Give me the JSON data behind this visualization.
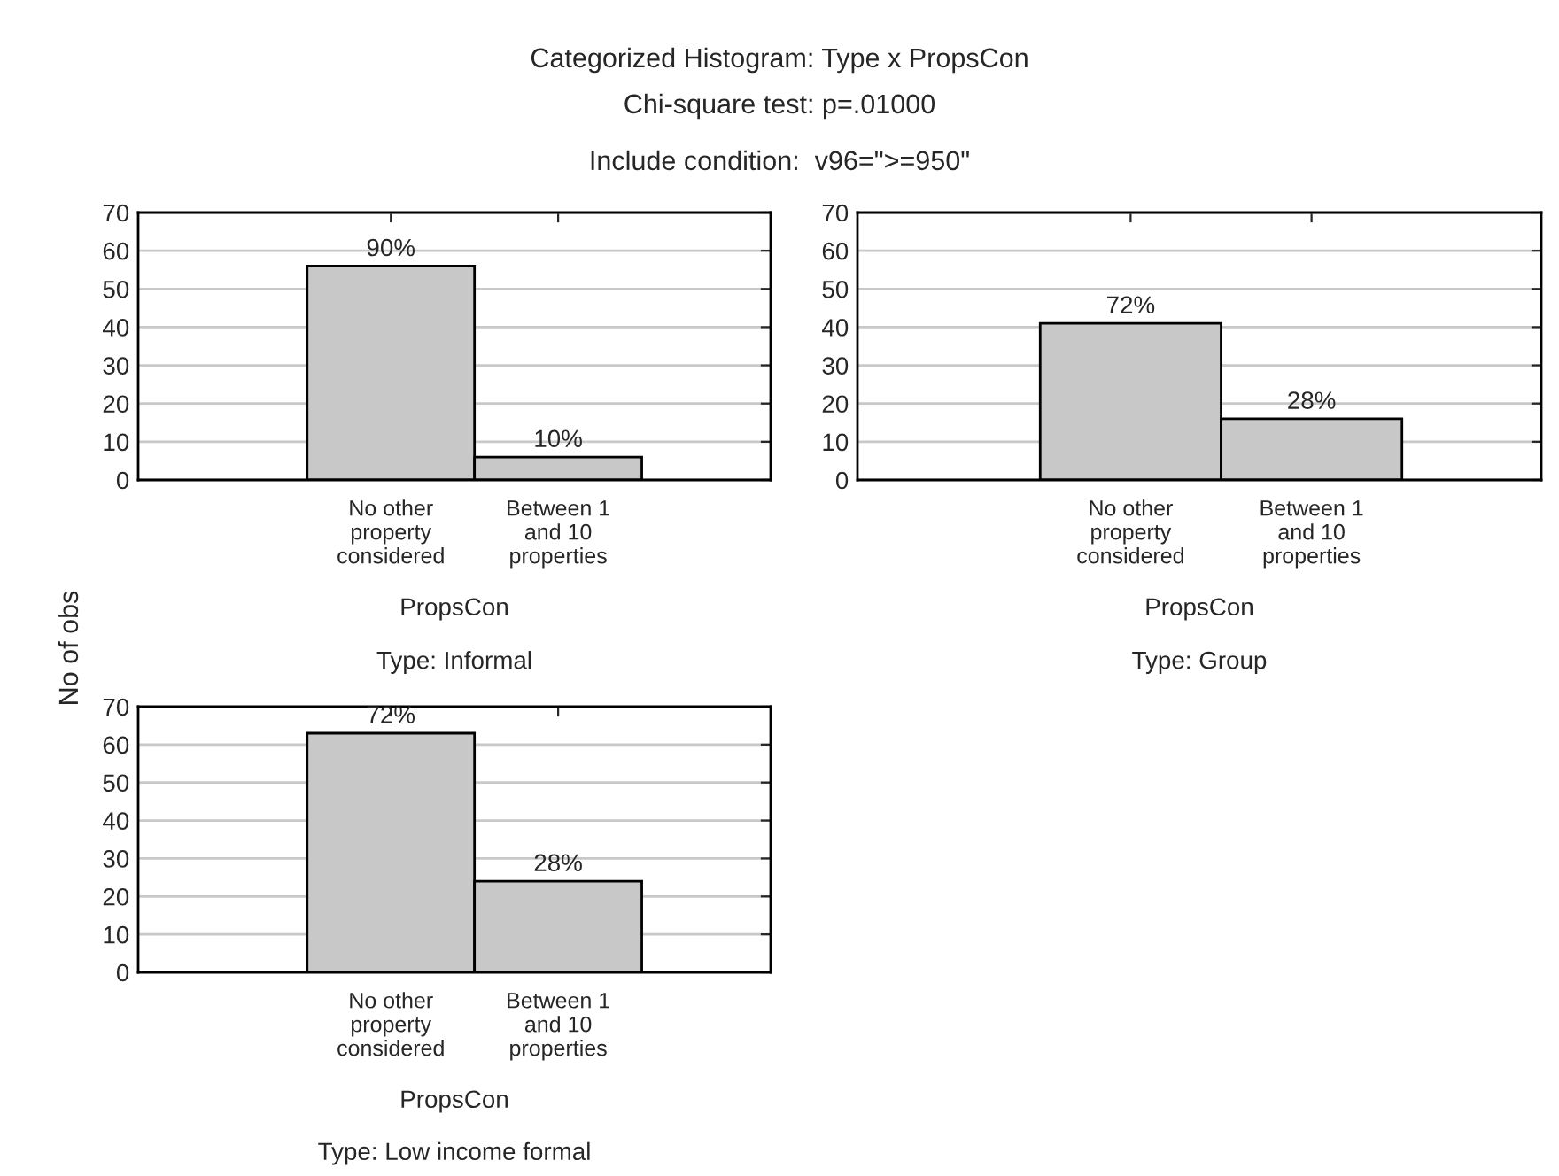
{
  "chart_data": [
    {
      "type": "bar",
      "title": "Categorized Histogram: Type x PropsCon",
      "subtitle": "Chi-square test: p=.01000",
      "ylabel": "No of obs",
      "xlabel": "PropsCon",
      "annotations": [
        "Include condition:  v96=\">=950\"",
        "Type: Informal",
        {
          "text": "90%",
          "x": "No other property considered",
          "y": 56
        },
        {
          "text": "10%",
          "x": "Between 1 and 10 properties",
          "y": 6
        }
      ],
      "categories": [
        "No other property considered",
        "Between 1 and 10 properties"
      ],
      "values": [
        56,
        6
      ],
      "color": "#c8c8c8",
      "ylim": [
        0,
        70
      ],
      "yticks": [
        0,
        10,
        20,
        30,
        40,
        50,
        60,
        70
      ],
      "grid": "y"
    },
    {
      "type": "bar",
      "xlabel": "PropsCon",
      "annotations": [
        "Type: Low income formal",
        {
          "text": "72%",
          "x": "No other property considered",
          "y": 63
        },
        {
          "text": "28%",
          "x": "Between 1 and 10 properties",
          "y": 24
        }
      ],
      "categories": [
        "No other property considered",
        "Between 1 and 10 properties"
      ],
      "values": [
        63,
        24
      ],
      "color": "#c8c8c8",
      "ylim": [
        0,
        70
      ],
      "yticks": [
        0,
        10,
        20,
        30,
        40,
        50,
        60,
        70
      ],
      "grid": "y"
    },
    {
      "type": "bar",
      "xlabel": "PropsCon",
      "annotations": [
        "Type: Group",
        {
          "text": "72%",
          "x": "No other property considered",
          "y": 41
        },
        {
          "text": "28%",
          "x": "Between 1 and 10 properties",
          "y": 16
        }
      ],
      "categories": [
        "No other property considered",
        "Between 1 and 10 properties"
      ],
      "values": [
        41,
        16
      ],
      "color": "#c8c8c8",
      "ylim": [
        0,
        70
      ],
      "yticks": [
        0,
        10,
        20,
        30,
        40,
        50,
        60,
        70
      ],
      "grid": "y"
    }
  ]
}
